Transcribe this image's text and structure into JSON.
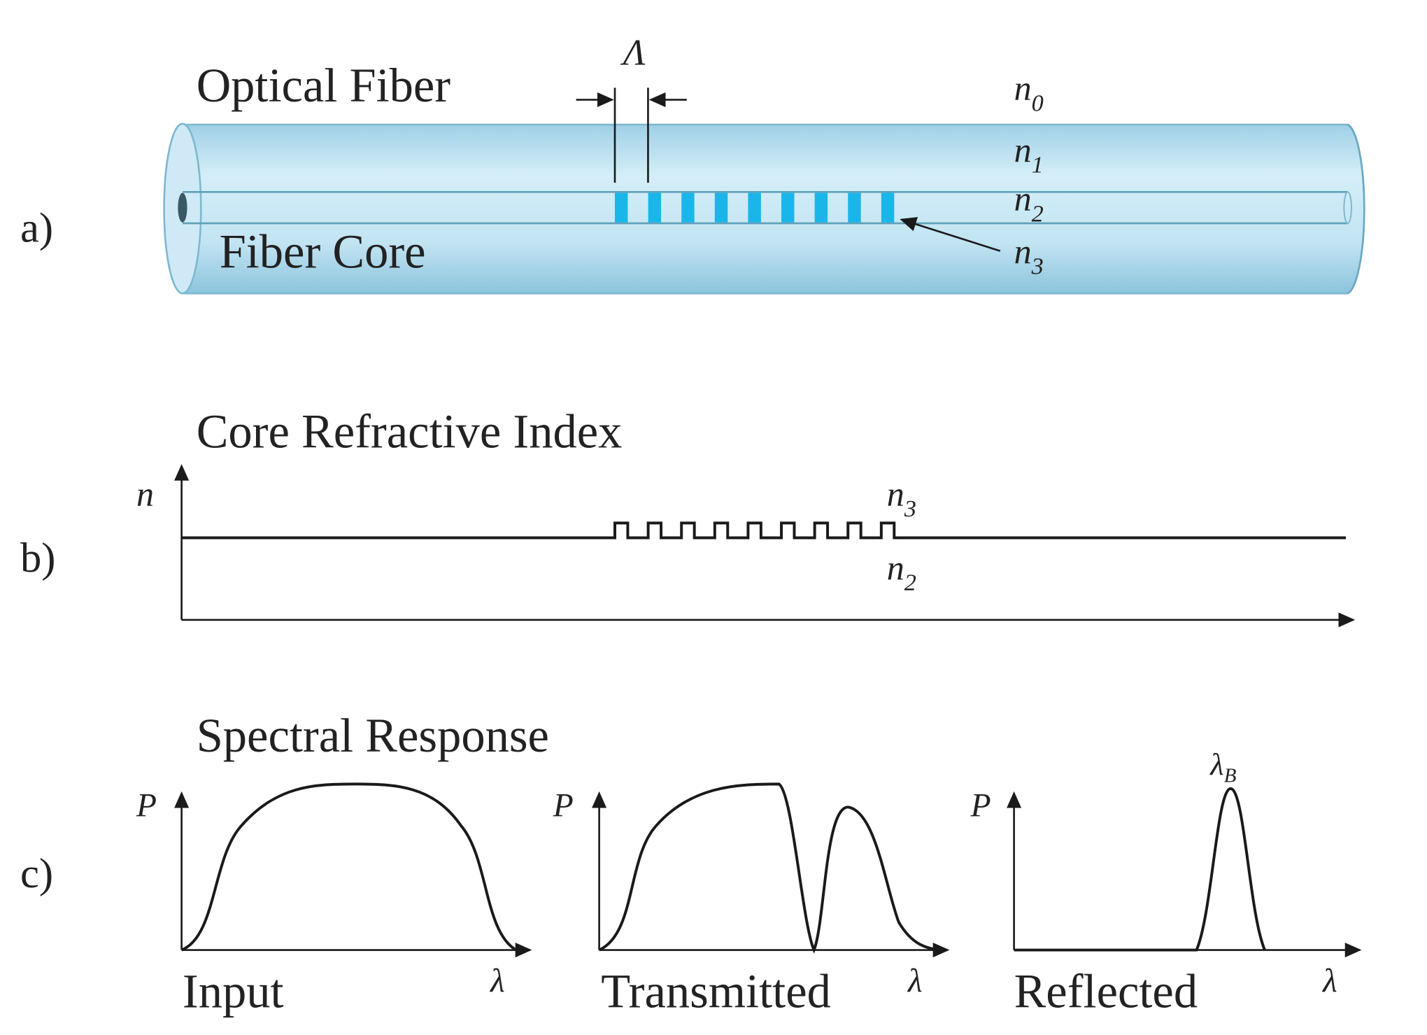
{
  "colors": {
    "fiber_fill": "#bfe3f2",
    "fiber_edge": "#7fb8d0",
    "grating": "#1ab6ea",
    "ink": "#1a1a1a"
  },
  "panel_a": {
    "marker": "a)",
    "fiber_label": "Optical Fiber",
    "core_label": "Fiber Core",
    "period_label": "Λ",
    "n0": "n",
    "n0_sub": "0",
    "n1": "n",
    "n1_sub": "1",
    "n2": "n",
    "n2_sub": "2",
    "n3": "n",
    "n3_sub": "3",
    "grating_periods": 9
  },
  "panel_b": {
    "marker": "b)",
    "title": "Core Refractive Index",
    "y_axis_label": "n",
    "upper_label": "n",
    "upper_sub": "3",
    "lower_label": "n",
    "lower_sub": "2"
  },
  "panel_c": {
    "marker": "c)",
    "title": "Spectral Response",
    "plots": [
      {
        "label": "Input",
        "y_axis": "P",
        "x_axis": "λ"
      },
      {
        "label": "Transmitted",
        "y_axis": "P",
        "x_axis": "λ"
      },
      {
        "label": "Reflected",
        "y_axis": "P",
        "x_axis": "λ",
        "peak_label": "λ",
        "peak_sub": "B"
      }
    ]
  }
}
